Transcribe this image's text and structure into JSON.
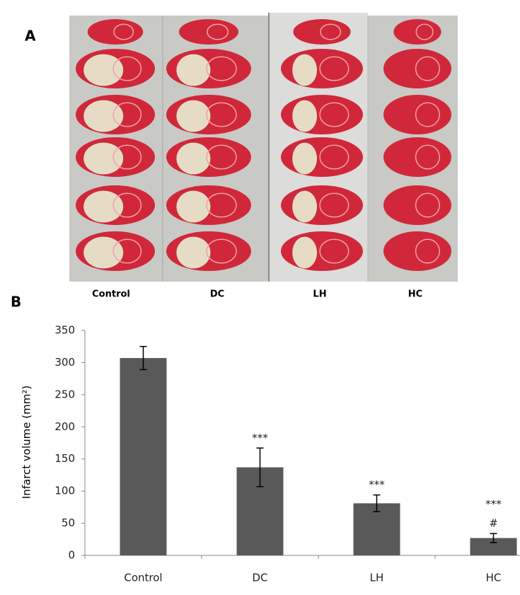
{
  "panel_a": {
    "label": "A",
    "groups": [
      "Control",
      "DC",
      "LH",
      "HC"
    ]
  },
  "panel_b": {
    "label": "B"
  },
  "chart_data": {
    "type": "bar",
    "y_label": "Infarct volume (mm²)",
    "categories": [
      "Control",
      "DC",
      "LH",
      "HC"
    ],
    "values": [
      307,
      137,
      81,
      27
    ],
    "errors": [
      18,
      30,
      13,
      7
    ],
    "annotations": [
      null,
      [
        "***"
      ],
      [
        "***"
      ],
      [
        "***",
        "#"
      ]
    ],
    "color": "#595959",
    "ylim": [
      0,
      350
    ],
    "yticks": [
      0,
      50,
      100,
      150,
      200,
      250,
      300,
      350
    ]
  }
}
